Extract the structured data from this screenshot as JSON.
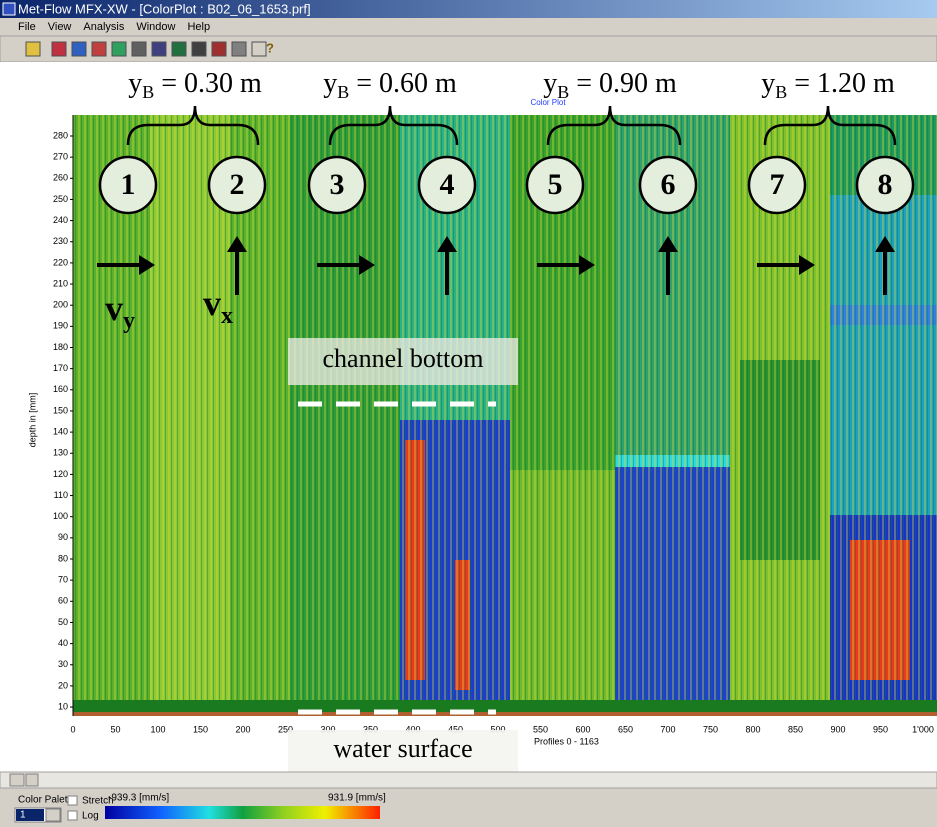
{
  "window": {
    "title": "Met-Flow MFX-XW - [ColorPlot : B02_06_1653.prf]",
    "menu": [
      "File",
      "View",
      "Analysis",
      "Window",
      "Help"
    ],
    "help_button": "?"
  },
  "plot": {
    "title": "Color Plot",
    "y_label": "depth in [mm]",
    "y_ticks": [
      "280",
      "270",
      "260",
      "250",
      "240",
      "230",
      "220",
      "210",
      "200",
      "190",
      "180",
      "170",
      "160",
      "150",
      "140",
      "130",
      "120",
      "110",
      "100",
      "90",
      "80",
      "70",
      "60",
      "50",
      "40",
      "30",
      "20",
      "10"
    ],
    "x_ticks": [
      "0",
      "50",
      "100",
      "150",
      "200",
      "250",
      "300",
      "350",
      "400",
      "450",
      "500",
      "550",
      "600",
      "650",
      "700",
      "750",
      "800",
      "850",
      "900",
      "950",
      "1'000"
    ],
    "x_caption": "Profiles 0 - 1163"
  },
  "annotations": {
    "groups": [
      {
        "var": "y",
        "sub": "B",
        "text": " = 0.30 m"
      },
      {
        "var": "y",
        "sub": "B",
        "text": " = 0.60 m"
      },
      {
        "var": "y",
        "sub": "B",
        "text": " = 0.90 m"
      },
      {
        "var": "y",
        "sub": "B",
        "text": " = 1.20 m"
      }
    ],
    "markers": [
      "1",
      "2",
      "3",
      "4",
      "5",
      "6",
      "7",
      "8"
    ],
    "velocity_labels": [
      {
        "var": "v",
        "sub": "y"
      },
      {
        "var": "v",
        "sub": "x"
      }
    ],
    "channel_bottom": "channel bottom",
    "water_surface": "water surface"
  },
  "palette": {
    "label": "Color Palette",
    "selected": "1",
    "stretch": "Stretch",
    "log": "Log",
    "min": "-939.3 [mm/s]",
    "max": "931.9 [mm/s]"
  }
}
